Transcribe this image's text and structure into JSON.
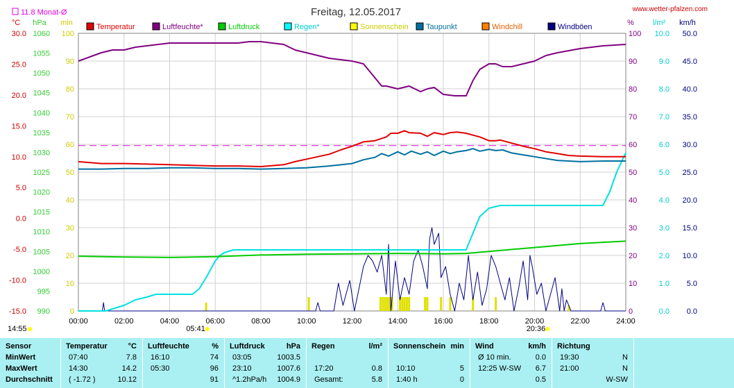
{
  "title": "Freitag, 12.05.2017",
  "site": "www.wetter-pfalzen.com",
  "monthly_avg_label": "11.8 Monat-Ø",
  "units_left": [
    "°C",
    "hPa",
    "min"
  ],
  "units_right": [
    "%",
    "l/m²",
    "km/h"
  ],
  "colors": {
    "temp": "#e00000",
    "hum": "#800080",
    "press": "#00cc00",
    "rain": "#00e0e0",
    "sun": "#e0e000",
    "dew": "#0070a0",
    "chill": "#f07000",
    "gust": "#000080",
    "avg": "#e000e0",
    "press_axis": "#33cc33",
    "sun_axis": "#cccc00",
    "rain_axis": "#00cccc"
  },
  "legend": [
    {
      "key": "temp",
      "label": "Temperatur",
      "color": "#e00000"
    },
    {
      "key": "hum",
      "label": "Luftfeuchte*",
      "color": "#800080"
    },
    {
      "key": "press",
      "label": "Luftdruck",
      "color": "#00cc00"
    },
    {
      "key": "rain",
      "label": "Regen*",
      "color": "#00ffff"
    },
    {
      "key": "sun",
      "label": "Sonnenschein",
      "color": "#ffff00"
    },
    {
      "key": "dew",
      "label": "Taupunkt",
      "color": "#0070a0"
    },
    {
      "key": "chill",
      "label": "Windchill",
      "color": "#ff8000"
    },
    {
      "key": "gust",
      "label": "Windböen",
      "color": "#000080"
    }
  ],
  "sunrise": "05:41",
  "sunset": "20:36",
  "now": "14:55",
  "chart_data": {
    "type": "line",
    "x_range": [
      "00:00",
      "24:00"
    ],
    "x_ticks": [
      "00:00",
      "02:00",
      "04:00",
      "06:00",
      "08:00",
      "10:00",
      "12:00",
      "14:00",
      "16:00",
      "18:00",
      "20:00",
      "22:00",
      "24:00"
    ],
    "axes": {
      "temp_c": {
        "range": [
          -15,
          30
        ],
        "ticks": [
          "30.0",
          "25.0",
          "20.0",
          "15.0",
          "10.0",
          "5.0",
          "0.0",
          "-5.0",
          "-10.0",
          "-15.0"
        ]
      },
      "pressure_hpa": {
        "range": [
          990,
          1060
        ],
        "ticks": [
          "1060",
          "1055",
          "1050",
          "1045",
          "1040",
          "1035",
          "1030",
          "1025",
          "1020",
          "1015",
          "1010",
          "1005",
          "1000",
          "995",
          "990"
        ]
      },
      "sun_min": {
        "range": [
          0,
          100
        ],
        "ticks": [
          "100",
          "90",
          "80",
          "70",
          "60",
          "50",
          "40",
          "30",
          "20",
          "10",
          "0"
        ]
      },
      "humidity_pct": {
        "range": [
          0,
          100
        ],
        "ticks": [
          "100",
          "90",
          "80",
          "70",
          "60",
          "50",
          "40",
          "30",
          "20",
          "10",
          "0"
        ]
      },
      "rain_lm2": {
        "range": [
          0,
          10
        ],
        "ticks": [
          "10.0",
          "9.0",
          "8.0",
          "7.0",
          "6.0",
          "5.0",
          "4.0",
          "3.0",
          "2.0",
          "1.0",
          "0.0"
        ]
      },
      "wind_kmh": {
        "range": [
          0,
          50
        ],
        "ticks": [
          "50.0",
          "45.0",
          "40.0",
          "35.0",
          "30.0",
          "25.0",
          "20.0",
          "15.0",
          "10.0",
          "5.0",
          "0.0"
        ]
      }
    },
    "monthly_avg_temp": 11.8,
    "series": [
      {
        "name": "Temperatur",
        "key": "temp",
        "axis": "temp_c",
        "x": [
          0,
          1,
          2,
          3,
          4,
          5,
          6,
          7,
          8,
          9,
          9.5,
          10,
          11,
          11.5,
          12,
          12.5,
          13,
          13.5,
          13.7,
          14,
          14.3,
          14.5,
          15,
          15.3,
          15.6,
          16,
          16.3,
          16.6,
          17,
          17.3,
          17.6,
          18,
          18.3,
          18.5,
          19,
          19.5,
          20,
          20.5,
          21,
          21.5,
          22,
          23,
          24
        ],
        "y": [
          9.2,
          8.9,
          8.9,
          8.8,
          8.7,
          8.6,
          8.5,
          8.5,
          8.4,
          8.7,
          9.2,
          9.6,
          10.4,
          11.1,
          11.7,
          12.4,
          12.6,
          13.2,
          13.8,
          13.8,
          14.2,
          13.9,
          13.8,
          13.3,
          13.9,
          13.6,
          13.9,
          14.0,
          13.8,
          13.5,
          13.2,
          12.6,
          12.6,
          12.7,
          12.2,
          11.7,
          11.3,
          10.8,
          10.5,
          10.2,
          10.1,
          10.0,
          10.0
        ]
      },
      {
        "name": "Luftfeuchte*",
        "key": "hum",
        "axis": "humidity_pct",
        "x": [
          0,
          0.5,
          1,
          1.5,
          2,
          2.5,
          3,
          3.5,
          4,
          5,
          6,
          7,
          7.5,
          8,
          8.5,
          9,
          9.5,
          10,
          11,
          11.5,
          12,
          12.5,
          13,
          13.3,
          13.5,
          14,
          14.5,
          15,
          15.3,
          15.6,
          16,
          16.5,
          17,
          17.3,
          17.6,
          18,
          18.3,
          18.6,
          19,
          19.5,
          20,
          20.5,
          21,
          22,
          23,
          24
        ],
        "y": [
          90,
          91.5,
          93,
          94,
          94,
          95,
          95.5,
          96,
          96.5,
          96.5,
          96.5,
          96.5,
          97,
          97,
          96.5,
          96,
          94,
          93,
          91,
          90.5,
          90,
          89,
          84,
          81,
          81,
          80,
          81,
          79,
          80,
          80.5,
          78,
          77.5,
          77.5,
          83,
          87,
          89,
          89,
          88,
          88,
          89,
          90,
          92,
          93,
          94.5,
          95.5,
          96
        ]
      },
      {
        "name": "Luftdruck",
        "key": "press",
        "axis": "pressure_hpa",
        "x": [
          0,
          2,
          4,
          6,
          8,
          10,
          12,
          14,
          16,
          17,
          18,
          19,
          20,
          21,
          22,
          23,
          24
        ],
        "y": [
          1003.8,
          1003.6,
          1003.5,
          1003.7,
          1004.1,
          1004.3,
          1004.4,
          1004.5,
          1004.4,
          1004.5,
          1005.0,
          1005.5,
          1006.0,
          1006.5,
          1007.0,
          1007.3,
          1007.6
        ]
      },
      {
        "name": "Regen*",
        "key": "rain",
        "axis": "rain_lm2",
        "x": [
          0,
          1.2,
          1.6,
          2,
          2.5,
          3,
          3.4,
          4,
          4.3,
          5,
          5.3,
          5.6,
          6,
          6.2,
          6.4,
          6.8,
          7,
          8,
          12,
          16,
          17,
          17.3,
          17.6,
          18,
          18.5,
          20,
          21,
          22,
          22.5,
          23,
          23.3,
          23.6,
          24
        ],
        "y": [
          0,
          0,
          0.1,
          0.2,
          0.4,
          0.5,
          0.6,
          0.6,
          0.6,
          0.6,
          0.8,
          1.2,
          1.8,
          2.0,
          2.1,
          2.2,
          2.2,
          2.2,
          2.2,
          2.2,
          2.2,
          2.8,
          3.4,
          3.7,
          3.8,
          3.8,
          3.8,
          3.8,
          3.8,
          3.8,
          4.3,
          5.0,
          5.7
        ]
      },
      {
        "name": "Taupunkt",
        "key": "dew",
        "axis": "temp_c",
        "x": [
          0,
          1,
          2,
          3,
          4,
          5,
          6,
          7,
          8,
          9,
          10,
          11,
          12,
          12.5,
          13,
          13.3,
          13.6,
          14,
          14.3,
          14.6,
          15,
          15.3,
          15.6,
          16,
          16.3,
          16.6,
          17,
          17.3,
          17.6,
          18,
          18.3,
          18.6,
          19,
          19.5,
          20,
          21,
          22,
          23,
          24
        ],
        "y": [
          8.0,
          8.0,
          8.1,
          8.1,
          8.2,
          8.2,
          8.1,
          8.1,
          8.0,
          8.1,
          8.2,
          8.5,
          8.9,
          9.5,
          9.9,
          10.5,
          10.1,
          10.8,
          10.3,
          10.9,
          10.4,
          10.8,
          10.2,
          10.9,
          10.5,
          10.8,
          11.0,
          11.3,
          10.9,
          11.2,
          11.0,
          11.1,
          10.6,
          10.3,
          10.0,
          9.4,
          9.2,
          9.3,
          9.3
        ]
      },
      {
        "name": "Windböen",
        "key": "gust",
        "axis": "wind_kmh",
        "x": [
          0,
          1.05,
          1.1,
          1.15,
          1.5,
          10.4,
          10.5,
          10.6,
          11.2,
          11.4,
          11.6,
          11.9,
          12.1,
          12.3,
          12.5,
          12.7,
          12.9,
          13.1,
          13.3,
          13.5,
          13.6,
          13.7,
          13.9,
          14.1,
          14.3,
          14.5,
          14.7,
          14.9,
          15.1,
          15.3,
          15.4,
          15.5,
          15.6,
          15.8,
          15.9,
          16.1,
          16.3,
          16.5,
          16.7,
          16.9,
          17.1,
          17.3,
          17.5,
          17.7,
          17.9,
          18.1,
          18.3,
          18.5,
          18.7,
          18.9,
          19.1,
          19.3,
          19.5,
          19.7,
          19.8,
          19.9,
          20.1,
          20.3,
          20.5,
          20.7,
          20.9,
          21.1,
          21.2,
          21.3,
          21.4,
          21.6,
          21.8,
          22,
          22.9,
          23,
          23.1,
          23.3,
          24
        ],
        "y": [
          0,
          0,
          1.5,
          0,
          0,
          0,
          1.5,
          0,
          0,
          5,
          1,
          5.5,
          0,
          4,
          8,
          10,
          9,
          7,
          10,
          3,
          12,
          0,
          9,
          2,
          6,
          3,
          9,
          11,
          8,
          4,
          13,
          15,
          12,
          14,
          6,
          8,
          3,
          0,
          5,
          2,
          10,
          2,
          7,
          1,
          4,
          10,
          8,
          5,
          2,
          6,
          0,
          4,
          9,
          2,
          10,
          8,
          3,
          5,
          0,
          3,
          6,
          0,
          4,
          0,
          2,
          0,
          0,
          0,
          0,
          1.5,
          0,
          0,
          0
        ]
      },
      {
        "name": "Sonnenschein",
        "key": "sun",
        "axis": "sun_min",
        "x": [
          5.6,
          10.1,
          13.25,
          13.35,
          13.45,
          13.55,
          13.65,
          13.75,
          14.1,
          14.2,
          14.3,
          14.4,
          14.5,
          15.2,
          15.3,
          15.9,
          16.3,
          17.3,
          18.3,
          21.5
        ],
        "y": [
          3,
          5,
          5,
          5,
          5,
          5,
          5,
          5,
          5,
          5,
          5,
          5,
          5,
          5,
          5,
          5,
          5,
          5,
          5,
          2
        ]
      }
    ]
  },
  "stats": {
    "headers": [
      {
        "label": "Sensor",
        "unit": ""
      },
      {
        "label": "Temperatur",
        "unit": "°C"
      },
      {
        "label": "Luftfeuchte",
        "unit": "%"
      },
      {
        "label": "Luftdruck",
        "unit": "hPa"
      },
      {
        "label": "Regen",
        "unit": "l/m²"
      },
      {
        "label": "Sonnenschein",
        "unit": "min"
      },
      {
        "label": "Wind",
        "unit": "km/h"
      },
      {
        "label": "Richtung",
        "unit": ""
      }
    ],
    "rows": [
      {
        "label": "MinWert",
        "cells": [
          [
            "07:40",
            "7.8"
          ],
          [
            "16:10",
            "74"
          ],
          [
            "03:05",
            "1003.5"
          ],
          [
            "",
            ""
          ],
          [
            "",
            ""
          ],
          [
            "Ø 10 min.",
            "0.0"
          ],
          [
            "19:30",
            "N"
          ]
        ]
      },
      {
        "label": "MaxWert",
        "cells": [
          [
            "14:30",
            "14.2"
          ],
          [
            "05:30",
            "96"
          ],
          [
            "23:10",
            "1007.6"
          ],
          [
            "17:20",
            "0.8"
          ],
          [
            "10:10",
            "5"
          ],
          [
            "12:25   W-SW",
            "6.7"
          ],
          [
            "21:00",
            "N"
          ]
        ]
      },
      {
        "label": "Durchschnitt",
        "cells": [
          [
            "( -1.72 )",
            "10.12"
          ],
          [
            "",
            "91"
          ],
          [
            "^1.2hPa/h",
            "1004.9"
          ],
          [
            "Gesamt:",
            "5.8"
          ],
          [
            "1:40 h",
            "0"
          ],
          [
            "",
            "0.5"
          ],
          [
            "",
            "W-SW"
          ]
        ]
      }
    ]
  }
}
